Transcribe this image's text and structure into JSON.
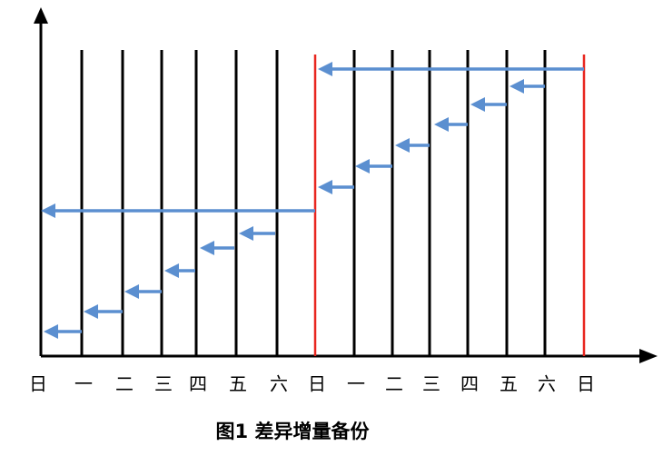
{
  "axis_labels": [
    "日",
    "一",
    "二",
    "三",
    "四",
    "五",
    "六",
    "日",
    "一",
    "二",
    "三",
    "四",
    "五",
    "六",
    "日"
  ],
  "caption": "图1 差异增量备份"
}
